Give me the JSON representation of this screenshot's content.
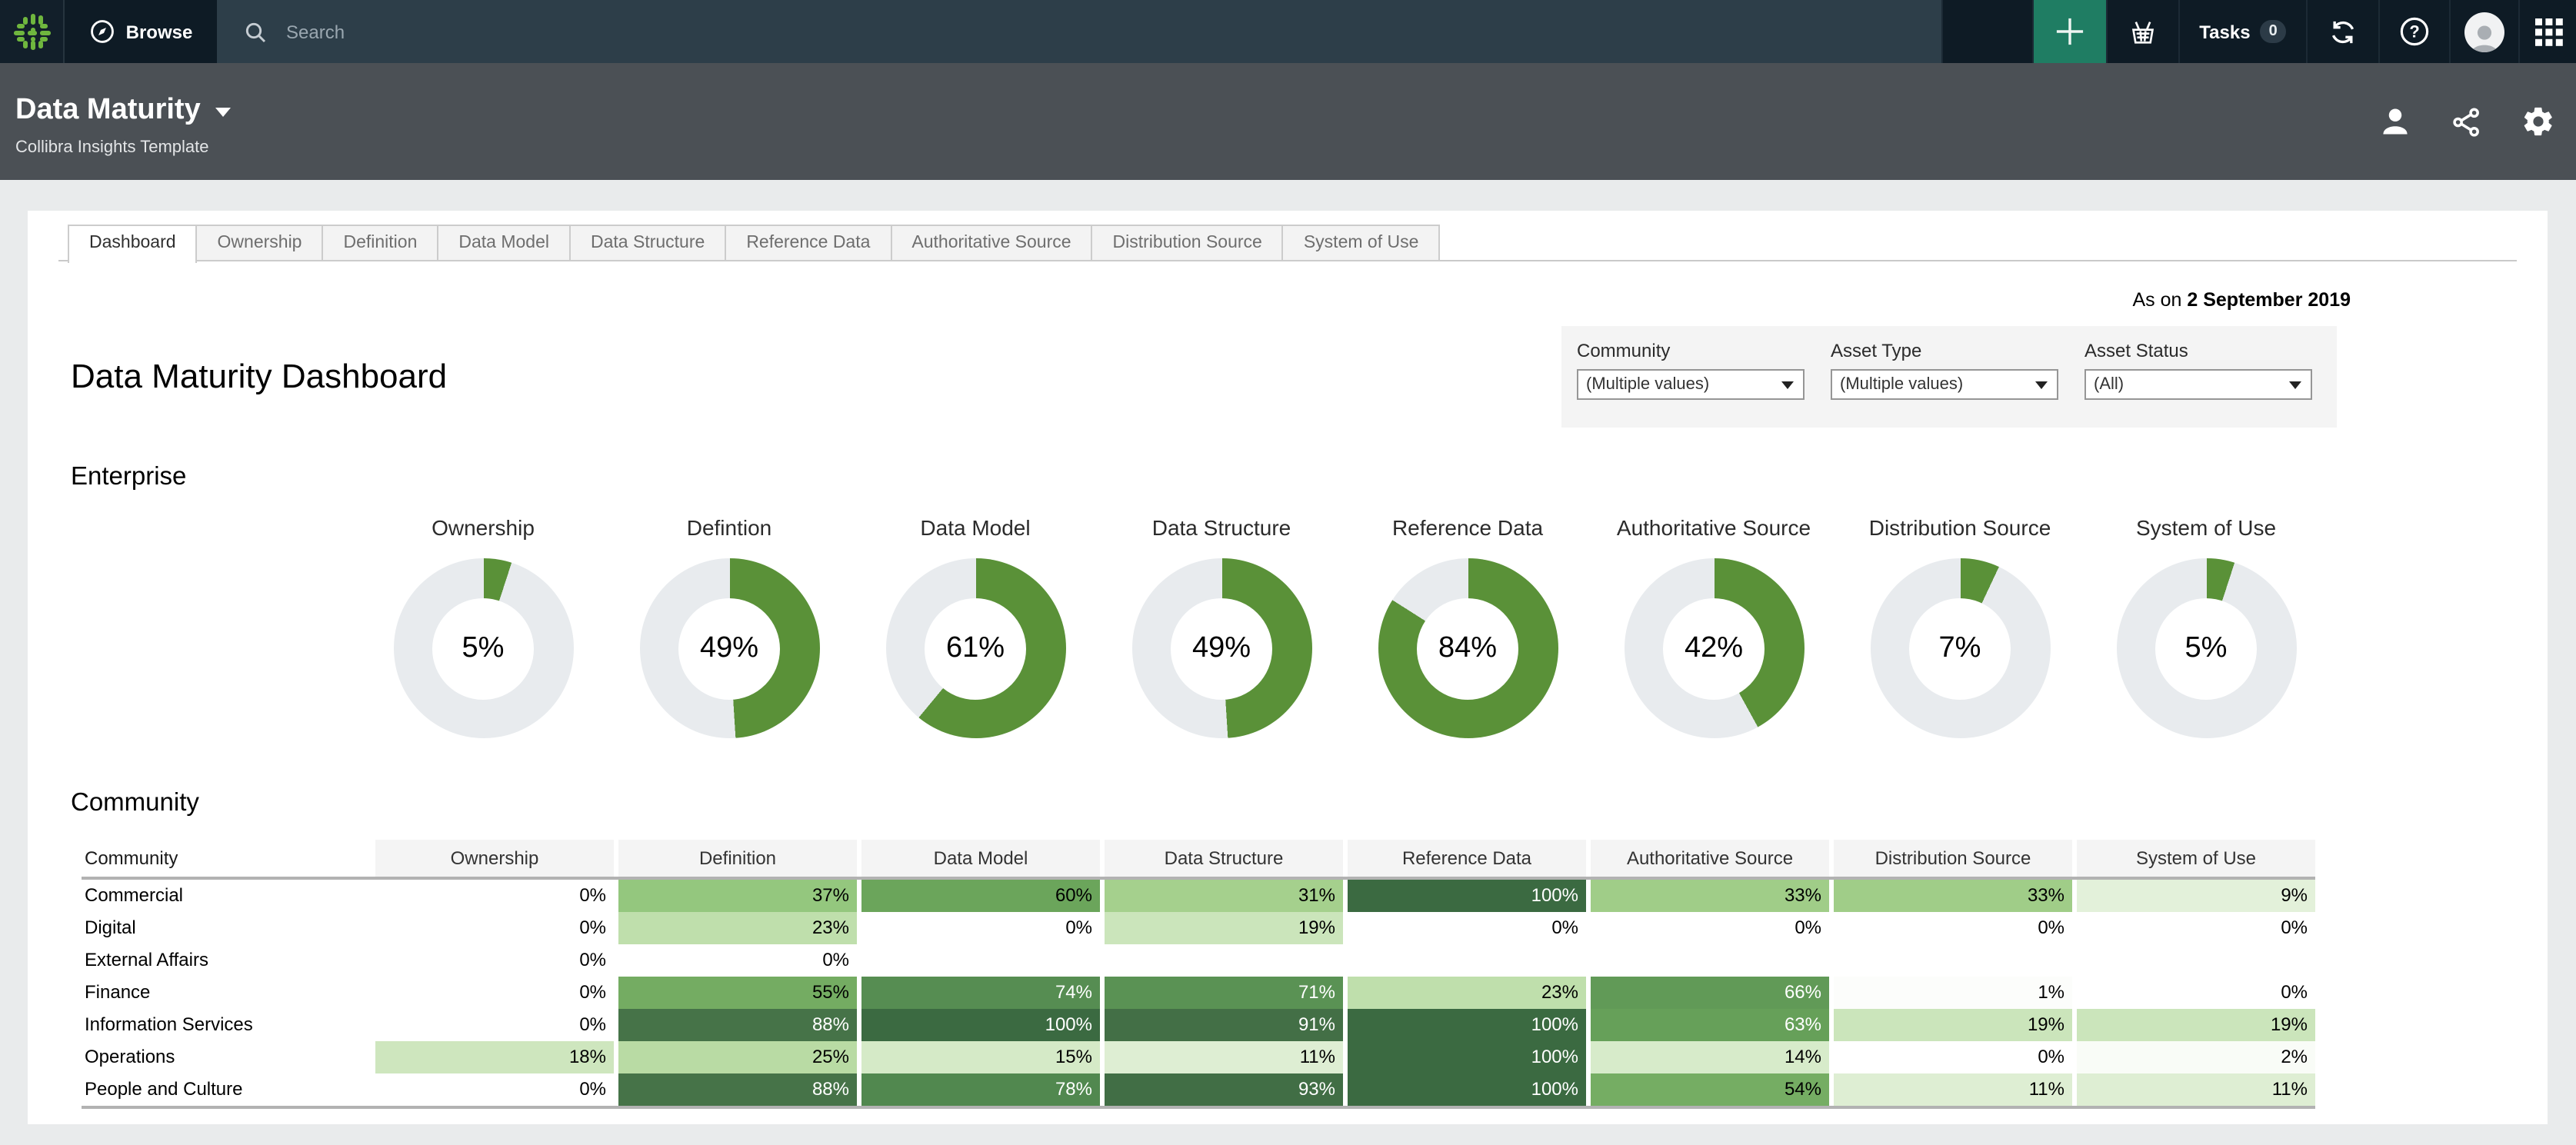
{
  "topbar": {
    "browse_label": "Browse",
    "search_placeholder": "Search",
    "tasks_label": "Tasks",
    "tasks_count": "0",
    "icons": [
      "collibra-sparkle-logo",
      "compass-icon",
      "magnifier-icon",
      "plus-icon",
      "shopping-basket-icon",
      "sync-arrows-icon",
      "question-circle-icon",
      "user-avatar",
      "app-grid-icon"
    ]
  },
  "header": {
    "title": "Data Maturity",
    "subtitle": "Collibra Insights Template",
    "icons": [
      "person-icon",
      "share-icon",
      "gear-icon",
      "caret-down-icon"
    ]
  },
  "tabs": {
    "active_index": 0,
    "items": [
      "Dashboard",
      "Ownership",
      "Definition",
      "Data Model",
      "Data Structure",
      "Reference Data",
      "Authoritative Source",
      "Distribution Source",
      "System of Use"
    ]
  },
  "as_of": {
    "prefix": "As on ",
    "date": "2 September 2019"
  },
  "filters": {
    "items": [
      {
        "label": "Community",
        "value": "(Multiple values)"
      },
      {
        "label": "Asset Type",
        "value": "(Multiple values)"
      },
      {
        "label": "Asset Status",
        "value": "(All)"
      }
    ]
  },
  "page": {
    "title": "Data Maturity Dashboard",
    "enterprise_heading": "Enterprise",
    "community_heading": "Community"
  },
  "enterprise": {
    "donuts": [
      {
        "label": "Ownership",
        "value": 5
      },
      {
        "label": "Defintion",
        "value": 49
      },
      {
        "label": "Data Model",
        "value": 61
      },
      {
        "label": "Data Structure",
        "value": 49
      },
      {
        "label": "Reference Data",
        "value": 84
      },
      {
        "label": "Authoritative Source",
        "value": 42
      },
      {
        "label": "Distribution Source",
        "value": 7
      },
      {
        "label": "System of Use",
        "value": 5
      }
    ]
  },
  "community_table": {
    "columns": [
      "Community",
      "Ownership",
      "Definition",
      "Data Model",
      "Data Structure",
      "Reference Data",
      "Authoritative Source",
      "Distribution Source",
      "System of Use"
    ],
    "rows": [
      {
        "name": "Commercial",
        "values": [
          0,
          37,
          60,
          31,
          100,
          33,
          33,
          9
        ]
      },
      {
        "name": "Digital",
        "values": [
          0,
          23,
          0,
          19,
          0,
          0,
          0,
          0
        ]
      },
      {
        "name": "External Affairs",
        "values": [
          0,
          0,
          null,
          null,
          null,
          null,
          null,
          null
        ]
      },
      {
        "name": "Finance",
        "values": [
          0,
          55,
          74,
          71,
          23,
          66,
          1,
          0
        ]
      },
      {
        "name": "Information Services",
        "values": [
          0,
          88,
          100,
          91,
          100,
          63,
          19,
          19
        ]
      },
      {
        "name": "Operations",
        "values": [
          18,
          25,
          15,
          11,
          100,
          14,
          0,
          2
        ]
      },
      {
        "name": "People and Culture",
        "values": [
          0,
          88,
          78,
          93,
          100,
          54,
          11,
          11
        ]
      }
    ]
  },
  "colors": {
    "accent_plus_green": "#1f7d63",
    "logo_green": "#6fb63e",
    "donut_green": "#5a9138",
    "donut_track": "#e8ebee",
    "heat_anchors": [
      [
        0,
        "#ffffff"
      ],
      [
        10,
        "#e0efd6"
      ],
      [
        20,
        "#c9e4b8"
      ],
      [
        30,
        "#a8d290"
      ],
      [
        40,
        "#8cc276"
      ],
      [
        50,
        "#7cb369"
      ],
      [
        60,
        "#6ba55b"
      ],
      [
        70,
        "#5b9355"
      ],
      [
        80,
        "#4e854e"
      ],
      [
        90,
        "#446f47"
      ],
      [
        100,
        "#3b6a41"
      ]
    ],
    "white_text_min": 62
  }
}
